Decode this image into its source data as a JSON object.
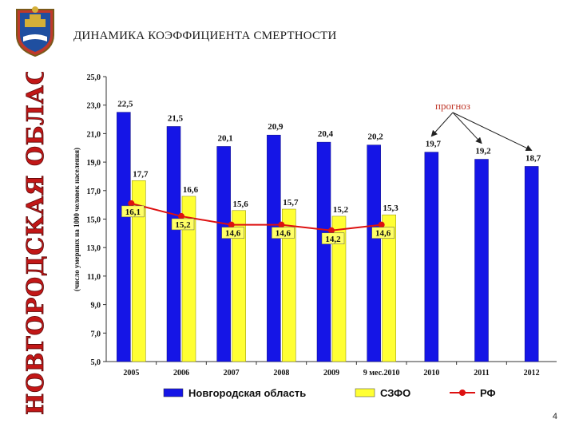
{
  "slide": {
    "title": "ДИНАМИКА КОЭФФИЦИЕНТА СМЕРТНОСТИ",
    "side_title": "НОВГОРОДСКАЯ ОБЛАСТЬ",
    "page_number": "4"
  },
  "chart_data": {
    "type": "bar",
    "categories": [
      "2005",
      "2006",
      "2007",
      "2008",
      "2009",
      "9 мес.2010",
      "2010",
      "2011",
      "2012"
    ],
    "ylabel": "(число умерших на 1000 человек населения)",
    "ylim": [
      5.0,
      25.0
    ],
    "yticks": [
      "5,0",
      "7,0",
      "9,0",
      "11,0",
      "13,0",
      "15,0",
      "17,0",
      "19,0",
      "21,0",
      "23,0",
      "25,0"
    ],
    "grid": false,
    "legend_position": "bottom",
    "annotation": "прогноз",
    "series": [
      {
        "name": "Новгородская область",
        "type": "bar",
        "color": "#1515e6",
        "values": [
          22.5,
          21.5,
          20.1,
          20.9,
          20.4,
          20.2,
          19.7,
          19.2,
          18.7
        ],
        "labels": [
          "22,5",
          "21,5",
          "20,1",
          "20,9",
          "20,4",
          "20,2",
          "19,7",
          "19,2",
          "18,7"
        ]
      },
      {
        "name": "СЗФО",
        "type": "bar",
        "color": "#ffff33",
        "values": [
          17.7,
          16.6,
          15.6,
          15.7,
          15.2,
          15.3,
          null,
          null,
          null
        ],
        "labels": [
          "17,7",
          "16,6",
          "15,6",
          "15,7",
          "15,2",
          "15,3",
          null,
          null,
          null
        ]
      },
      {
        "name": "РФ",
        "type": "line",
        "color": "#dd1111",
        "values": [
          16.1,
          15.2,
          14.6,
          14.6,
          14.2,
          14.6,
          null,
          null,
          null
        ],
        "labels": [
          "16,1",
          "15,2",
          "14,6",
          "14,6",
          "14,2",
          "14,6",
          null,
          null,
          null
        ]
      }
    ]
  }
}
